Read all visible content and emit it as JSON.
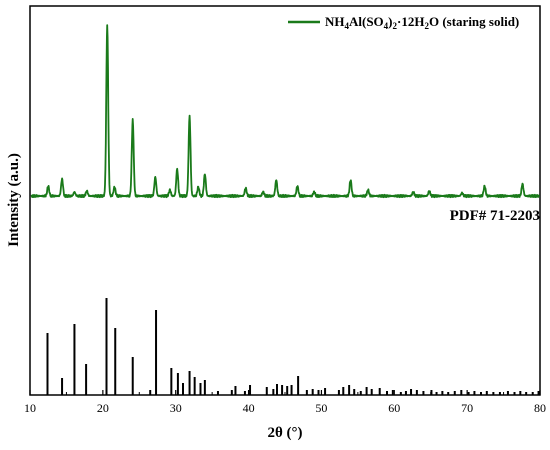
{
  "chart_data": {
    "type": "line",
    "xlabel": "2θ (°)",
    "ylabel": "Intensity (a.u.)",
    "xlim": [
      10,
      80
    ],
    "x_ticks": [
      "10",
      "20",
      "30",
      "40",
      "50",
      "60",
      "70",
      "80"
    ],
    "legend_position": "top-right",
    "colors": {
      "pattern": "#1a7a1a",
      "reference": "#000000",
      "axes": "#000000"
    },
    "series": [
      {
        "name": "NH4Al(SO4)2·12H2O (staring solid)",
        "name_parts": [
          "NH",
          "4",
          "Al(SO",
          "4",
          ")",
          "2",
          "·12H",
          "2",
          "O (staring solid)"
        ],
        "style": "line",
        "baseline": 4,
        "peaks": [
          {
            "x": 12.5,
            "y": 10
          },
          {
            "x": 14.4,
            "y": 17
          },
          {
            "x": 16.1,
            "y": 4
          },
          {
            "x": 17.8,
            "y": 5
          },
          {
            "x": 20.6,
            "y": 171
          },
          {
            "x": 21.6,
            "y": 9
          },
          {
            "x": 24.1,
            "y": 76
          },
          {
            "x": 27.2,
            "y": 19
          },
          {
            "x": 29.2,
            "y": 6
          },
          {
            "x": 30.2,
            "y": 27
          },
          {
            "x": 31.9,
            "y": 80
          },
          {
            "x": 33.1,
            "y": 9
          },
          {
            "x": 34.0,
            "y": 22
          },
          {
            "x": 39.6,
            "y": 8
          },
          {
            "x": 42.0,
            "y": 4
          },
          {
            "x": 43.8,
            "y": 16
          },
          {
            "x": 46.7,
            "y": 10
          },
          {
            "x": 49.0,
            "y": 4
          },
          {
            "x": 54.0,
            "y": 16
          },
          {
            "x": 56.4,
            "y": 6
          },
          {
            "x": 62.6,
            "y": 4
          },
          {
            "x": 64.8,
            "y": 5
          },
          {
            "x": 69.3,
            "y": 3
          },
          {
            "x": 72.4,
            "y": 10
          },
          {
            "x": 77.6,
            "y": 12
          }
        ]
      },
      {
        "name": "PDF# 71-2203",
        "style": "sticks",
        "sticks": [
          {
            "x": 12.4,
            "y": 62
          },
          {
            "x": 14.4,
            "y": 17
          },
          {
            "x": 16.1,
            "y": 71
          },
          {
            "x": 17.7,
            "y": 31
          },
          {
            "x": 20.5,
            "y": 97
          },
          {
            "x": 21.7,
            "y": 67
          },
          {
            "x": 24.1,
            "y": 38
          },
          {
            "x": 26.5,
            "y": 5
          },
          {
            "x": 27.3,
            "y": 85
          },
          {
            "x": 29.4,
            "y": 27
          },
          {
            "x": 30.3,
            "y": 22
          },
          {
            "x": 31.0,
            "y": 12
          },
          {
            "x": 31.9,
            "y": 24
          },
          {
            "x": 32.6,
            "y": 18
          },
          {
            "x": 33.4,
            "y": 12
          },
          {
            "x": 34.0,
            "y": 15
          },
          {
            "x": 35.8,
            "y": 4
          },
          {
            "x": 37.7,
            "y": 5
          },
          {
            "x": 38.2,
            "y": 9
          },
          {
            "x": 39.5,
            "y": 4
          },
          {
            "x": 40.2,
            "y": 10
          },
          {
            "x": 42.5,
            "y": 8
          },
          {
            "x": 43.4,
            "y": 6
          },
          {
            "x": 43.9,
            "y": 11
          },
          {
            "x": 44.6,
            "y": 10
          },
          {
            "x": 45.3,
            "y": 9
          },
          {
            "x": 45.9,
            "y": 10
          },
          {
            "x": 46.8,
            "y": 19
          },
          {
            "x": 48.0,
            "y": 5
          },
          {
            "x": 48.8,
            "y": 6
          },
          {
            "x": 49.6,
            "y": 5
          },
          {
            "x": 50.5,
            "y": 7
          },
          {
            "x": 52.4,
            "y": 5
          },
          {
            "x": 53.0,
            "y": 8
          },
          {
            "x": 53.8,
            "y": 10
          },
          {
            "x": 54.5,
            "y": 6
          },
          {
            "x": 55.4,
            "y": 4
          },
          {
            "x": 56.2,
            "y": 8
          },
          {
            "x": 56.9,
            "y": 6
          },
          {
            "x": 58.0,
            "y": 7
          },
          {
            "x": 59.0,
            "y": 4
          },
          {
            "x": 59.8,
            "y": 5
          },
          {
            "x": 60.9,
            "y": 3
          },
          {
            "x": 61.6,
            "y": 4
          },
          {
            "x": 62.3,
            "y": 6
          },
          {
            "x": 63.1,
            "y": 5
          },
          {
            "x": 64.0,
            "y": 4
          },
          {
            "x": 65.1,
            "y": 5
          },
          {
            "x": 65.8,
            "y": 3
          },
          {
            "x": 66.6,
            "y": 4
          },
          {
            "x": 67.4,
            "y": 3
          },
          {
            "x": 68.3,
            "y": 4
          },
          {
            "x": 69.2,
            "y": 5
          },
          {
            "x": 70.2,
            "y": 3
          },
          {
            "x": 71.0,
            "y": 4
          },
          {
            "x": 71.9,
            "y": 3
          },
          {
            "x": 72.7,
            "y": 4
          },
          {
            "x": 73.6,
            "y": 3
          },
          {
            "x": 74.5,
            "y": 3
          },
          {
            "x": 75.6,
            "y": 4
          },
          {
            "x": 76.5,
            "y": 3
          },
          {
            "x": 77.3,
            "y": 4
          },
          {
            "x": 78.1,
            "y": 3
          },
          {
            "x": 79.0,
            "y": 3
          },
          {
            "x": 79.8,
            "y": 4
          }
        ]
      }
    ]
  }
}
